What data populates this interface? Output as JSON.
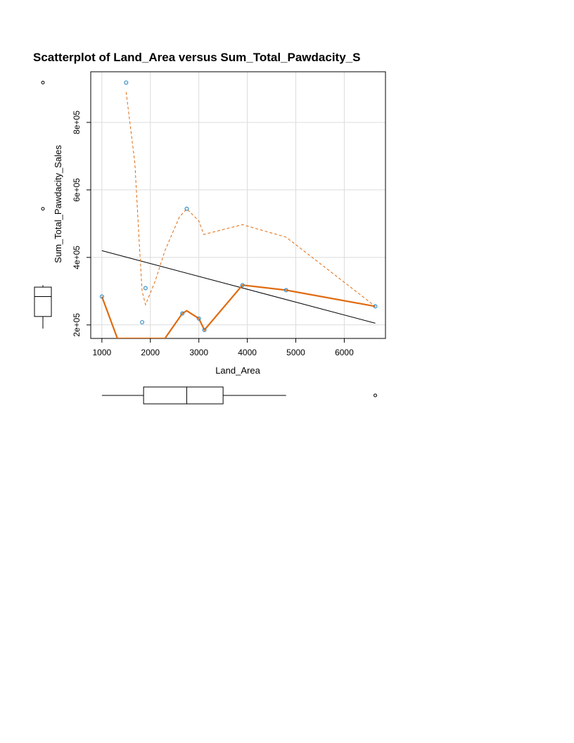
{
  "chart_data": {
    "type": "scatter",
    "title": "Scatterplot of Land_Area versus Sum_Total_Pawdacity_S",
    "xlabel": "Land_Area",
    "ylabel": "Sum_Total_Pawdacity_Sales",
    "xlim": [
      770,
      6850
    ],
    "ylim": [
      160000,
      950000
    ],
    "x_ticks": [
      1000,
      2000,
      3000,
      4000,
      5000,
      6000
    ],
    "x_tick_labels": [
      "1000",
      "2000",
      "3000",
      "4000",
      "5000",
      "6000"
    ],
    "y_ticks": [
      200000,
      400000,
      600000,
      800000
    ],
    "y_tick_labels": [
      "2e+05",
      "4e+05",
      "6e+05",
      "8e+05"
    ],
    "grid": true,
    "points": [
      {
        "x": 1000,
        "y": 284000
      },
      {
        "x": 1500,
        "y": 918000
      },
      {
        "x": 1830,
        "y": 208000
      },
      {
        "x": 1900,
        "y": 309000
      },
      {
        "x": 2660,
        "y": 234000
      },
      {
        "x": 2750,
        "y": 544000
      },
      {
        "x": 3000,
        "y": 219000
      },
      {
        "x": 3115,
        "y": 185000
      },
      {
        "x": 3900,
        "y": 318000
      },
      {
        "x": 4800,
        "y": 303000
      },
      {
        "x": 6640,
        "y": 255000
      }
    ],
    "regression_line": {
      "x": [
        1000,
        6640
      ],
      "y": [
        420000,
        205000
      ]
    },
    "smooth_line": {
      "x": [
        1000,
        1320,
        2300,
        2660,
        2750,
        3000,
        3115,
        3900,
        4800,
        6640
      ],
      "y": [
        284000,
        160000,
        160000,
        234000,
        242000,
        219000,
        185000,
        318000,
        303000,
        255000
      ]
    },
    "upper_spread_line": {
      "x": [
        1500,
        1680,
        1780,
        1830,
        1900,
        2100,
        2300,
        2600,
        2750,
        3000,
        3100,
        3900,
        4800,
        6640
      ],
      "y": [
        890000,
        680000,
        420000,
        300000,
        260000,
        330000,
        420000,
        520000,
        544000,
        508000,
        468000,
        497000,
        460000,
        255000
      ]
    },
    "x_boxplot": {
      "min": 1000,
      "q1": 1860,
      "median": 2750,
      "q3": 3500,
      "max": 4800,
      "outliers": [
        6640
      ]
    },
    "y_boxplot": {
      "min": 185000,
      "q1": 225000,
      "median": 284000,
      "q3": 312000,
      "max": 318000,
      "outliers": [
        544000,
        918000
      ]
    },
    "colors": {
      "points": "#3a8fc6",
      "regression": "#000000",
      "smooth": "#e06b10",
      "grid": "#dcdcdc"
    }
  }
}
